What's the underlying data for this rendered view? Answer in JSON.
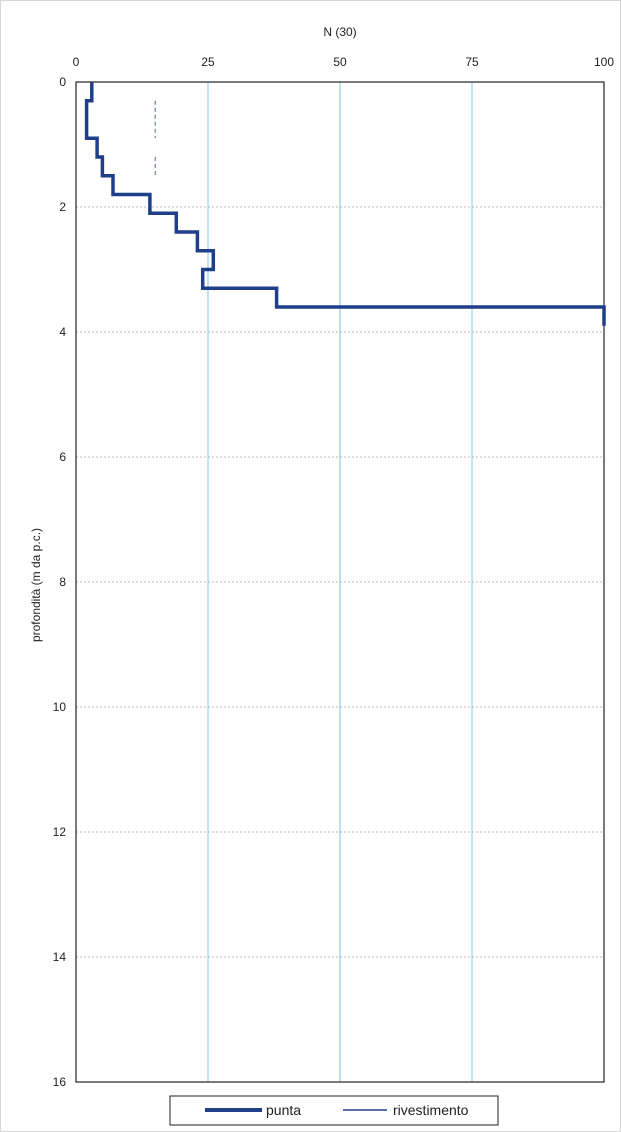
{
  "chart_data": {
    "type": "line",
    "title": "",
    "xlabel": "N (30)",
    "ylabel": "profondità (m da p.c.)",
    "x_axis_position": "top",
    "y_axis_inverted": true,
    "xlim": [
      0,
      100
    ],
    "ylim": [
      0,
      16
    ],
    "x_ticks": [
      0,
      25,
      50,
      75,
      100
    ],
    "y_ticks": [
      0,
      2,
      4,
      6,
      8,
      10,
      12,
      14,
      16
    ],
    "grid": true,
    "legend_position": "bottom",
    "series": [
      {
        "name": "punta",
        "color": "#1f3f8a",
        "style": "step",
        "points": [
          [
            3,
            0.0
          ],
          [
            3,
            0.3
          ],
          [
            2,
            0.3
          ],
          [
            2,
            0.9
          ],
          [
            4,
            0.9
          ],
          [
            4,
            1.2
          ],
          [
            5,
            1.2
          ],
          [
            5,
            1.5
          ],
          [
            7,
            1.5
          ],
          [
            7,
            1.8
          ],
          [
            14,
            1.8
          ],
          [
            14,
            2.1
          ],
          [
            19,
            2.1
          ],
          [
            19,
            2.4
          ],
          [
            23,
            2.4
          ],
          [
            23,
            2.7
          ],
          [
            26,
            2.7
          ],
          [
            26,
            3.0
          ],
          [
            24,
            3.0
          ],
          [
            24,
            3.3
          ],
          [
            38,
            3.3
          ],
          [
            38,
            3.6
          ],
          [
            100,
            3.6
          ],
          [
            100,
            3.9
          ]
        ]
      },
      {
        "name": "rivestimento",
        "color": "#6a7fb5",
        "style": "dashed",
        "points": [
          [
            15,
            0.3
          ],
          [
            15,
            0.9
          ],
          [
            15,
            1.2
          ],
          [
            15,
            1.5
          ]
        ]
      }
    ]
  }
}
